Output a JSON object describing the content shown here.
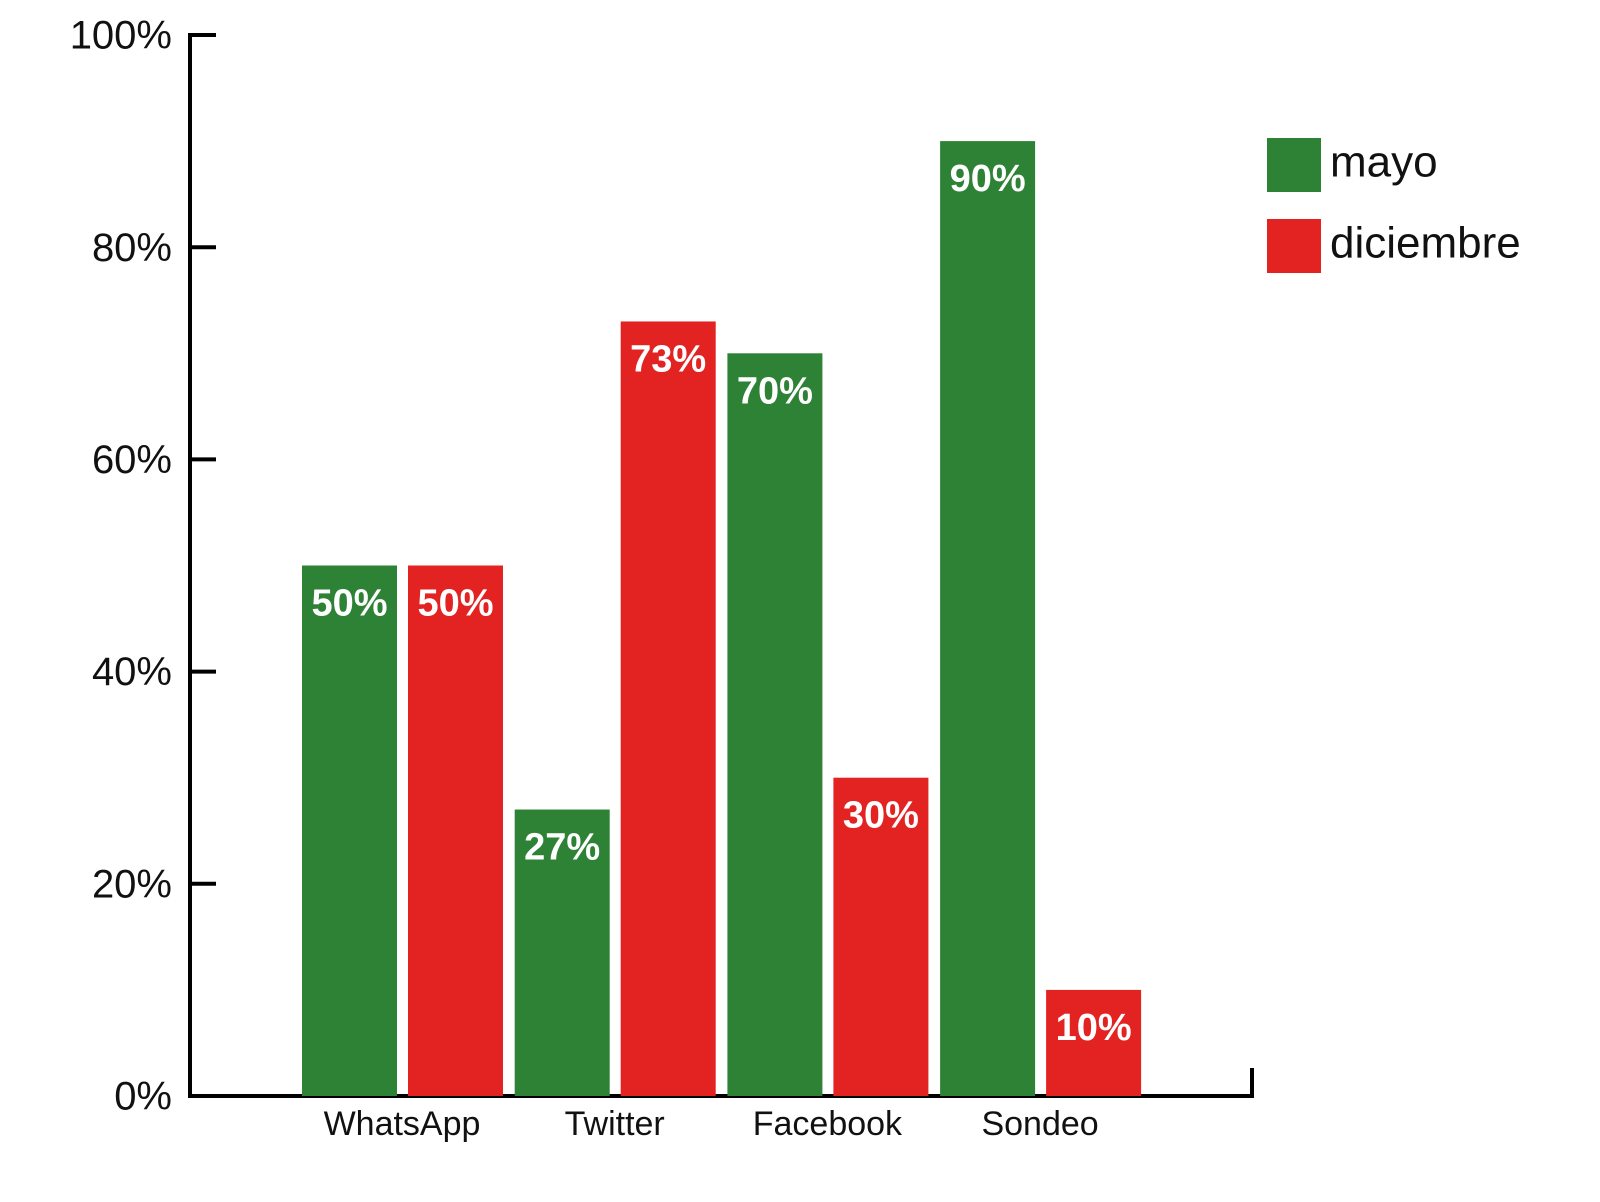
{
  "chart_data": {
    "type": "bar",
    "categories": [
      "WhatsApp",
      "Twitter",
      "Facebook",
      "Sondeo"
    ],
    "series": [
      {
        "name": "mayo",
        "color": "#2e8236",
        "values": [
          50,
          27,
          70,
          90
        ],
        "value_labels": [
          "50%",
          "27%",
          "70%",
          "90%"
        ]
      },
      {
        "name": "diciembre",
        "color": "#e32322",
        "values": [
          50,
          73,
          30,
          10
        ],
        "value_labels": [
          "50%",
          "73%",
          "30%",
          "10%"
        ]
      }
    ],
    "ylim": [
      0,
      100
    ],
    "yticks": [
      {
        "value": 0,
        "label": "0%"
      },
      {
        "value": 20,
        "label": "20%"
      },
      {
        "value": 40,
        "label": "40%"
      },
      {
        "value": 60,
        "label": "60%"
      },
      {
        "value": 80,
        "label": "80%"
      },
      {
        "value": 100,
        "label": "100%"
      }
    ],
    "legend": "top-right"
  }
}
